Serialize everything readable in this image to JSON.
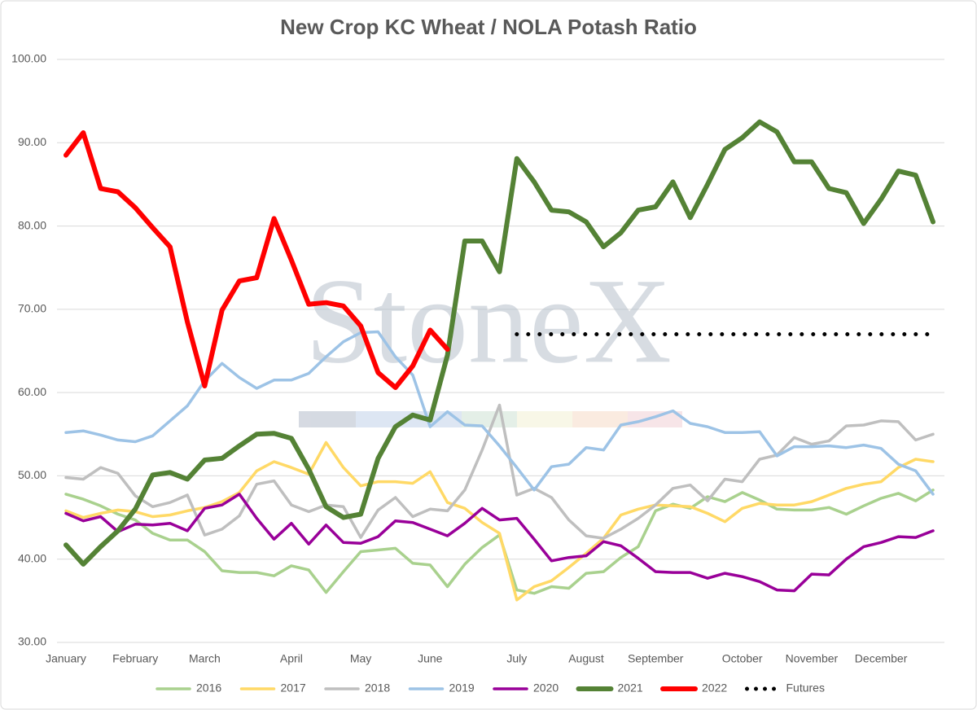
{
  "chart_data": {
    "type": "line",
    "title": "New Crop KC Wheat / NOLA Potash Ratio",
    "watermark": "StoneX",
    "categories": [
      "January",
      null,
      null,
      null,
      "February",
      null,
      null,
      null,
      "March",
      null,
      null,
      null,
      null,
      "April",
      null,
      null,
      null,
      "May",
      null,
      null,
      null,
      "June",
      null,
      null,
      null,
      null,
      "July",
      null,
      null,
      null,
      "August",
      null,
      null,
      null,
      "September",
      null,
      null,
      null,
      null,
      "October",
      null,
      null,
      null,
      "November",
      null,
      null,
      null,
      "December",
      null,
      null,
      null
    ],
    "ylim": [
      30,
      100
    ],
    "yticks": [
      {
        "value": 30,
        "label": "30.00"
      },
      {
        "value": 40,
        "label": "40.00"
      },
      {
        "value": 50,
        "label": "50.00"
      },
      {
        "value": 60,
        "label": "60.00"
      },
      {
        "value": 70,
        "label": "70.00"
      },
      {
        "value": 80,
        "label": "80.00"
      },
      {
        "value": 90,
        "label": "90.00"
      },
      {
        "value": 100,
        "label": "100.00"
      }
    ],
    "grid": true,
    "legend": "bottom",
    "series": [
      {
        "name": "2016",
        "color": "#a9d18e",
        "line_width": 3.5,
        "values": [
          47.8,
          47.2,
          46.4,
          45.4,
          44.7,
          43.1,
          42.3,
          42.3,
          40.9,
          38.6,
          38.4,
          38.4,
          38.0,
          39.2,
          38.7,
          36.0,
          38.5,
          40.9,
          41.1,
          41.3,
          39.5,
          39.3,
          36.7,
          39.4,
          41.4,
          42.9,
          36.3,
          35.9,
          36.7,
          36.5,
          38.3,
          38.5,
          40.2,
          41.5,
          45.8,
          46.6,
          46.1,
          47.5,
          46.9,
          48.0,
          47.1,
          46.0,
          45.9,
          45.9,
          46.2,
          45.4,
          46.4,
          47.3,
          47.9,
          47.0,
          48.3
        ]
      },
      {
        "name": "2017",
        "color": "#ffd966",
        "line_width": 3.5,
        "values": [
          45.8,
          45.0,
          45.5,
          45.9,
          45.7,
          45.1,
          45.3,
          45.8,
          46.2,
          46.9,
          48.0,
          50.6,
          51.7,
          51.0,
          50.2,
          54.0,
          51.0,
          48.8,
          49.3,
          49.3,
          49.1,
          50.5,
          46.8,
          46.1,
          44.4,
          43.1,
          35.1,
          36.7,
          37.4,
          39.0,
          40.7,
          42.5,
          45.3,
          46.0,
          46.5,
          46.4,
          46.3,
          45.5,
          44.5,
          46.1,
          46.7,
          46.5,
          46.5,
          46.9,
          47.7,
          48.5,
          49.0,
          49.3,
          51.0,
          52.0,
          51.7
        ]
      },
      {
        "name": "2018",
        "color": "#bfbfbf",
        "line_width": 3.5,
        "values": [
          49.8,
          49.6,
          51.0,
          50.3,
          47.6,
          46.3,
          46.8,
          47.7,
          42.9,
          43.6,
          45.2,
          49.0,
          49.4,
          46.5,
          45.7,
          46.5,
          46.3,
          42.6,
          45.9,
          47.4,
          45.1,
          46.0,
          45.8,
          48.3,
          53.1,
          58.5,
          47.7,
          48.5,
          47.4,
          44.7,
          42.8,
          42.5,
          43.6,
          44.9,
          46.5,
          48.5,
          48.9,
          47.0,
          49.6,
          49.3,
          52.0,
          52.5,
          54.6,
          53.8,
          54.2,
          56.0,
          56.1,
          56.6,
          56.5,
          54.3,
          55.0
        ]
      },
      {
        "name": "2019",
        "color": "#9dc3e6",
        "line_width": 3.5,
        "values": [
          55.2,
          55.4,
          54.9,
          54.3,
          54.1,
          54.8,
          56.6,
          58.4,
          61.4,
          63.5,
          61.8,
          60.5,
          61.5,
          61.5,
          62.3,
          64.3,
          66.1,
          67.2,
          67.3,
          64.3,
          62.1,
          55.9,
          57.7,
          56.1,
          56.0,
          53.6,
          51.0,
          48.3,
          51.1,
          51.4,
          53.4,
          53.1,
          56.1,
          56.5,
          57.1,
          57.8,
          56.3,
          55.9,
          55.2,
          55.2,
          55.3,
          52.4,
          53.5,
          53.5,
          53.6,
          53.4,
          53.7,
          53.3,
          51.4,
          50.6,
          47.8
        ]
      },
      {
        "name": "2020",
        "color": "#990099",
        "line_width": 3.5,
        "values": [
          45.5,
          44.6,
          45.1,
          43.3,
          44.2,
          44.1,
          44.3,
          43.4,
          46.1,
          46.5,
          47.8,
          44.9,
          42.4,
          44.3,
          41.8,
          44.1,
          42.0,
          41.9,
          42.7,
          44.6,
          44.4,
          43.6,
          42.8,
          44.3,
          46.1,
          44.7,
          44.9,
          42.4,
          39.8,
          40.2,
          40.4,
          42.1,
          41.6,
          40.1,
          38.5,
          38.4,
          38.4,
          37.7,
          38.3,
          37.9,
          37.3,
          36.3,
          36.2,
          38.2,
          38.1,
          40.0,
          41.5,
          42.0,
          42.7,
          42.6,
          43.4
        ]
      },
      {
        "name": "2021",
        "color": "#548235",
        "line_width": 6,
        "values": [
          41.7,
          39.4,
          41.5,
          43.4,
          46.0,
          50.1,
          50.4,
          49.6,
          51.9,
          52.1,
          53.6,
          55.0,
          55.1,
          54.5,
          50.8,
          46.3,
          45.0,
          45.4,
          52.1,
          55.9,
          57.3,
          56.7,
          64.5,
          78.2,
          78.2,
          74.5,
          88.1,
          85.3,
          81.9,
          81.7,
          80.5,
          77.5,
          79.2,
          81.9,
          82.3,
          85.3,
          81.0,
          85.0,
          89.2,
          90.6,
          92.5,
          91.3,
          87.7,
          87.7,
          84.5,
          84.0,
          80.3,
          83.2,
          86.6,
          86.1,
          80.5
        ]
      },
      {
        "name": "2022",
        "color": "#ff0000",
        "line_width": 6,
        "values": [
          88.5,
          91.2,
          84.5,
          84.1,
          82.2,
          79.8,
          77.5,
          68.5,
          60.8,
          69.9,
          73.4,
          73.8,
          80.9,
          75.9,
          70.6,
          70.8,
          70.4,
          68.0,
          62.4,
          60.6,
          63.2,
          67.5,
          65.2,
          null,
          null,
          null,
          null,
          null,
          null,
          null,
          null,
          null,
          null,
          null,
          null,
          null,
          null,
          null,
          null,
          null,
          null,
          null,
          null,
          null,
          null,
          null,
          null,
          null,
          null,
          null,
          null
        ]
      },
      {
        "name": "Futures",
        "color": "#000000",
        "line_width": 5,
        "dotted": true,
        "values": [
          null,
          null,
          null,
          null,
          null,
          null,
          null,
          null,
          null,
          null,
          null,
          null,
          null,
          null,
          null,
          null,
          null,
          null,
          null,
          null,
          null,
          null,
          null,
          null,
          null,
          null,
          67,
          67,
          67,
          67,
          67,
          67,
          67,
          67,
          67,
          67,
          67,
          67,
          67,
          67,
          67,
          67,
          67,
          67,
          67,
          67,
          67,
          67,
          67,
          67,
          67
        ]
      }
    ]
  }
}
